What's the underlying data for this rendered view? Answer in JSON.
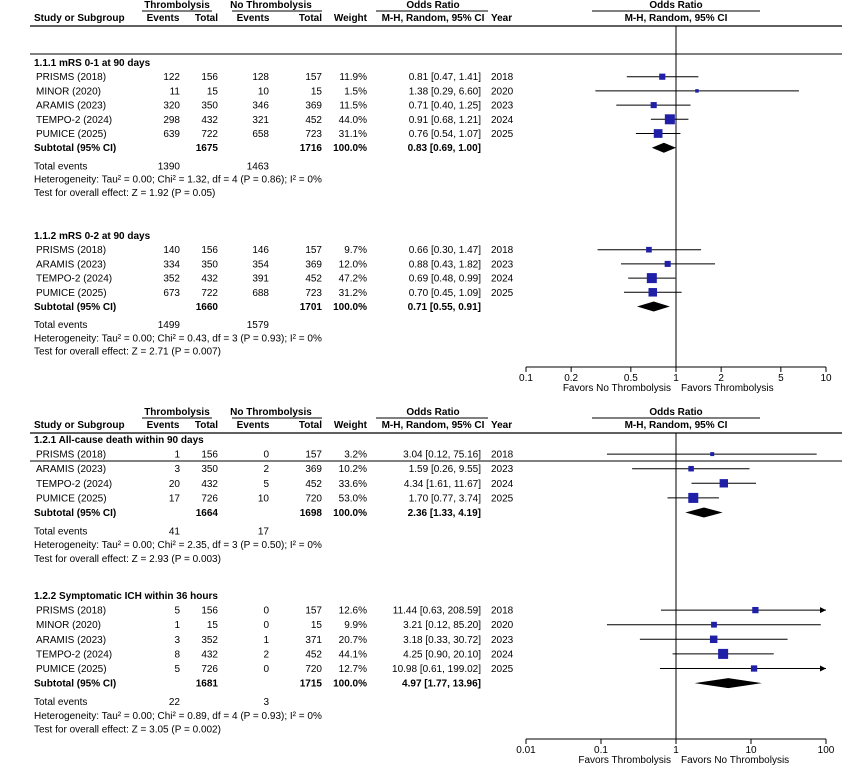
{
  "chart_data": [
    {
      "type": "forest",
      "col_headers": {
        "group1": "Thrombolysis",
        "group2": "No Thrombolysis",
        "effect": "Odds Ratio",
        "study": "Study or Subgroup",
        "events": "Events",
        "total": "Total",
        "weight": "Weight",
        "method": "M-H, Random, 95% CI",
        "year": "Year",
        "plot_title": "Odds Ratio",
        "plot_method": "M-H, Random, 95% CI"
      },
      "subgroups": [
        {
          "title": "1.1.1 mRS 0-1 at 90 days",
          "studies": [
            {
              "study": "PRISMS (2018)",
              "e1": "122",
              "n1": "156",
              "e2": "128",
              "n2": "157",
              "weight": "11.9%",
              "ci_text": "0.81 [0.47, 1.41]",
              "year": "2018",
              "or": 0.81,
              "lo": 0.47,
              "hi": 1.41
            },
            {
              "study": "MINOR (2020)",
              "e1": "11",
              "n1": "15",
              "e2": "10",
              "n2": "15",
              "weight": "1.5%",
              "ci_text": "1.38 [0.29, 6.60]",
              "year": "2020",
              "or": 1.38,
              "lo": 0.29,
              "hi": 6.6
            },
            {
              "study": "ARAMIS (2023)",
              "e1": "320",
              "n1": "350",
              "e2": "346",
              "n2": "369",
              "weight": "11.5%",
              "ci_text": "0.71 [0.40, 1.25]",
              "year": "2023",
              "or": 0.71,
              "lo": 0.4,
              "hi": 1.25
            },
            {
              "study": "TEMPO-2 (2024)",
              "e1": "298",
              "n1": "432",
              "e2": "321",
              "n2": "452",
              "weight": "44.0%",
              "ci_text": "0.91 [0.68, 1.21]",
              "year": "2024",
              "or": 0.91,
              "lo": 0.68,
              "hi": 1.21
            },
            {
              "study": "PUMICE (2025)",
              "e1": "639",
              "n1": "722",
              "e2": "658",
              "n2": "723",
              "weight": "31.1%",
              "ci_text": "0.76 [0.54, 1.07]",
              "year": "2025",
              "or": 0.76,
              "lo": 0.54,
              "hi": 1.07
            }
          ],
          "subtotal": {
            "label": "Subtotal (95% CI)",
            "n1": "1675",
            "n2": "1716",
            "weight": "100.0%",
            "ci_text": "0.83 [0.69, 1.00]",
            "or": 0.83,
            "lo": 0.69,
            "hi": 1.0
          },
          "total_events": {
            "label": "Total events",
            "e1": "1390",
            "e2": "1463"
          },
          "heterogeneity": "Heterogeneity: Tau² = 0.00; Chi² = 1.32, df = 4 (P = 0.86); I² = 0%",
          "overall": "Test for overall effect: Z = 1.92 (P = 0.05)"
        },
        {
          "title": "1.1.2 mRS 0-2 at 90 days",
          "studies": [
            {
              "study": "PRISMS (2018)",
              "e1": "140",
              "n1": "156",
              "e2": "146",
              "n2": "157",
              "weight": "9.7%",
              "ci_text": "0.66 [0.30, 1.47]",
              "year": "2018",
              "or": 0.66,
              "lo": 0.3,
              "hi": 1.47
            },
            {
              "study": "ARAMIS (2023)",
              "e1": "334",
              "n1": "350",
              "e2": "354",
              "n2": "369",
              "weight": "12.0%",
              "ci_text": "0.88 [0.43, 1.82]",
              "year": "2023",
              "or": 0.88,
              "lo": 0.43,
              "hi": 1.82
            },
            {
              "study": "TEMPO-2 (2024)",
              "e1": "352",
              "n1": "432",
              "e2": "391",
              "n2": "452",
              "weight": "47.2%",
              "ci_text": "0.69 [0.48, 0.99]",
              "year": "2024",
              "or": 0.69,
              "lo": 0.48,
              "hi": 0.99
            },
            {
              "study": "PUMICE (2025)",
              "e1": "673",
              "n1": "722",
              "e2": "688",
              "n2": "723",
              "weight": "31.2%",
              "ci_text": "0.70 [0.45, 1.09]",
              "year": "2025",
              "or": 0.7,
              "lo": 0.45,
              "hi": 1.09
            }
          ],
          "subtotal": {
            "label": "Subtotal (95% CI)",
            "n1": "1660",
            "n2": "1701",
            "weight": "100.0%",
            "ci_text": "0.71 [0.55, 0.91]",
            "or": 0.71,
            "lo": 0.55,
            "hi": 0.91
          },
          "total_events": {
            "label": "Total events",
            "e1": "1499",
            "e2": "1579"
          },
          "heterogeneity": "Heterogeneity: Tau² = 0.00; Chi² = 0.43, df = 3 (P = 0.93); I² = 0%",
          "overall": "Test for overall effect: Z = 2.71 (P = 0.007)"
        }
      ],
      "axis": {
        "scale": "log",
        "xlim": [
          0.1,
          10
        ],
        "ticks": [
          0.1,
          0.2,
          0.5,
          1,
          2,
          5,
          10
        ],
        "tick_labels": [
          "0.1",
          "0.2",
          "0.5",
          "1",
          "2",
          "5",
          "10"
        ],
        "favors_left": "Favors No Thrombolysis",
        "favors_right": "Favors Thrombolysis"
      }
    },
    {
      "type": "forest",
      "col_headers": {
        "group1": "Thrombolysis",
        "group2": "No Thrombolysis",
        "effect": "Odds Ratio",
        "study": "Study or Subgroup",
        "events": "Events",
        "total": "Total",
        "weight": "Weight",
        "method": "M-H, Random, 95% CI",
        "year": "Year",
        "plot_title": "Odds Ratio",
        "plot_method": "M-H, Random, 95% CI"
      },
      "subgroups": [
        {
          "title": "1.2.1 All-cause death within 90 days",
          "studies": [
            {
              "study": "PRISMS (2018)",
              "e1": "1",
              "n1": "156",
              "e2": "0",
              "n2": "157",
              "weight": "3.2%",
              "ci_text": "3.04 [0.12, 75.16]",
              "year": "2018",
              "or": 3.04,
              "lo": 0.12,
              "hi": 75.16
            },
            {
              "study": "ARAMIS (2023)",
              "e1": "3",
              "n1": "350",
              "e2": "2",
              "n2": "369",
              "weight": "10.2%",
              "ci_text": "1.59 [0.26, 9.55]",
              "year": "2023",
              "or": 1.59,
              "lo": 0.26,
              "hi": 9.55
            },
            {
              "study": "TEMPO-2 (2024)",
              "e1": "20",
              "n1": "432",
              "e2": "5",
              "n2": "452",
              "weight": "33.6%",
              "ci_text": "4.34 [1.61, 11.67]",
              "year": "2024",
              "or": 4.34,
              "lo": 1.61,
              "hi": 11.67
            },
            {
              "study": "PUMICE (2025)",
              "e1": "17",
              "n1": "726",
              "e2": "10",
              "n2": "720",
              "weight": "53.0%",
              "ci_text": "1.70 [0.77, 3.74]",
              "year": "2025",
              "or": 1.7,
              "lo": 0.77,
              "hi": 3.74
            }
          ],
          "subtotal": {
            "label": "Subtotal (95% CI)",
            "n1": "1664",
            "n2": "1698",
            "weight": "100.0%",
            "ci_text": "2.36 [1.33, 4.19]",
            "or": 2.36,
            "lo": 1.33,
            "hi": 4.19
          },
          "total_events": {
            "label": "Total events",
            "e1": "41",
            "e2": "17"
          },
          "heterogeneity": "Heterogeneity: Tau² = 0.00; Chi² = 2.35, df = 3 (P = 0.50); I² = 0%",
          "overall": "Test for overall effect: Z = 2.93 (P = 0.003)"
        },
        {
          "title": "1.2.2 Symptomatic ICH within 36 hours",
          "studies": [
            {
              "study": "PRISMS (2018)",
              "e1": "5",
              "n1": "156",
              "e2": "0",
              "n2": "157",
              "weight": "12.6%",
              "ci_text": "11.44 [0.63, 208.59]",
              "year": "2018",
              "or": 11.44,
              "lo": 0.63,
              "hi": 208.59
            },
            {
              "study": "MINOR (2020)",
              "e1": "1",
              "n1": "15",
              "e2": "0",
              "n2": "15",
              "weight": "9.9%",
              "ci_text": "3.21 [0.12, 85.20]",
              "year": "2020",
              "or": 3.21,
              "lo": 0.12,
              "hi": 85.2
            },
            {
              "study": "ARAMIS (2023)",
              "e1": "3",
              "n1": "352",
              "e2": "1",
              "n2": "371",
              "weight": "20.7%",
              "ci_text": "3.18 [0.33, 30.72]",
              "year": "2023",
              "or": 3.18,
              "lo": 0.33,
              "hi": 30.72
            },
            {
              "study": "TEMPO-2 (2024)",
              "e1": "8",
              "n1": "432",
              "e2": "2",
              "n2": "452",
              "weight": "44.1%",
              "ci_text": "4.25 [0.90, 20.10]",
              "year": "2024",
              "or": 4.25,
              "lo": 0.9,
              "hi": 20.1
            },
            {
              "study": "PUMICE (2025)",
              "e1": "5",
              "n1": "726",
              "e2": "0",
              "n2": "720",
              "weight": "12.7%",
              "ci_text": "10.98 [0.61, 199.02]",
              "year": "2025",
              "or": 10.98,
              "lo": 0.61,
              "hi": 199.02
            }
          ],
          "subtotal": {
            "label": "Subtotal (95% CI)",
            "n1": "1681",
            "n2": "1715",
            "weight": "100.0%",
            "ci_text": "4.97 [1.77, 13.96]",
            "or": 4.97,
            "lo": 1.77,
            "hi": 13.96
          },
          "total_events": {
            "label": "Total events",
            "e1": "22",
            "e2": "3"
          },
          "heterogeneity": "Heterogeneity: Tau² = 0.00; Chi² = 0.89, df = 4 (P = 0.93); I² = 0%",
          "overall": "Test for overall effect: Z = 3.05 (P = 0.002)"
        }
      ],
      "axis": {
        "scale": "log",
        "xlim": [
          0.01,
          100
        ],
        "ticks": [
          0.01,
          0.1,
          1,
          10,
          100
        ],
        "tick_labels": [
          "0.01",
          "0.1",
          "1",
          "10",
          "100"
        ],
        "favors_left": "Favors Thrombolysis",
        "favors_right": "Favors No Thrombolysis"
      }
    }
  ],
  "colors": {
    "marker": "#1f1fa8",
    "diamond": "#000000",
    "line": "#000000"
  }
}
